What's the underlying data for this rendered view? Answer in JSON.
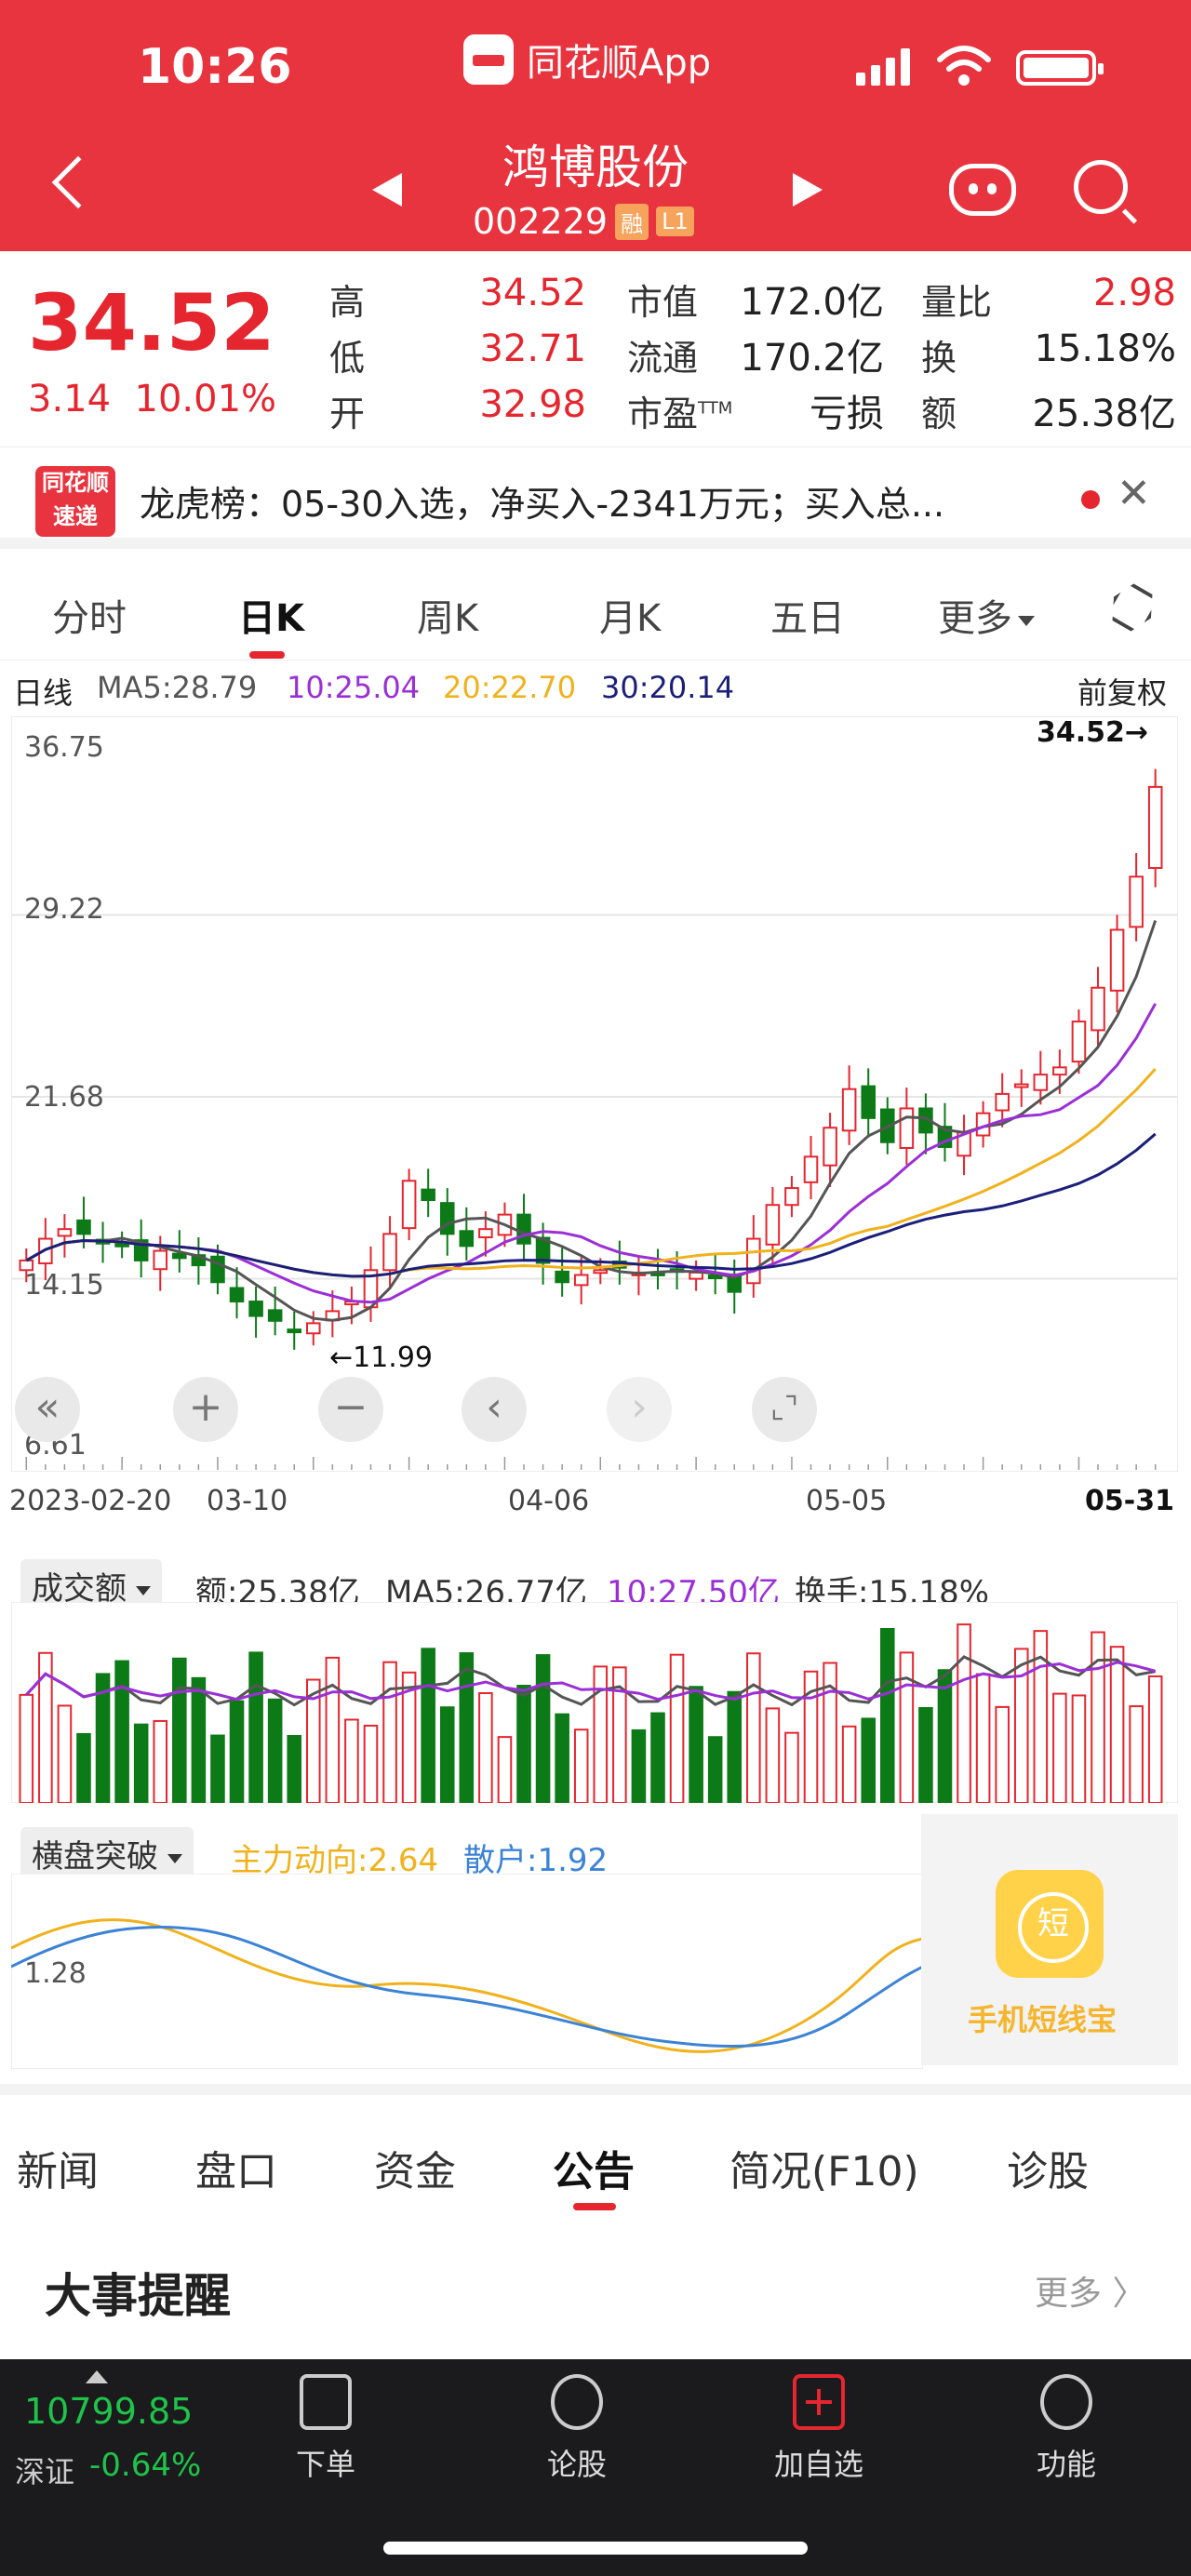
{
  "status": {
    "time": "10:26",
    "app_name": "同花顺App"
  },
  "stock": {
    "name": "鸿博股份",
    "code": "002229",
    "tag_margin": "融",
    "tag_level": "L1"
  },
  "quote": {
    "price": "34.52",
    "change": "3.14",
    "change_pct": "10.01%",
    "rows": [
      {
        "l1": "高",
        "v1": "34.52",
        "l2": "市值",
        "v2": "172.0亿",
        "l3": "量比",
        "v3": "2.98"
      },
      {
        "l1": "低",
        "v1": "32.71",
        "l2": "流通",
        "v2": "170.2亿",
        "l3": "换",
        "v3": "15.18%"
      },
      {
        "l1": "开",
        "v1": "32.98",
        "l2": "市盈",
        "l2sup": "TTM",
        "v2": "亏损",
        "l3": "额",
        "v3": "25.38亿"
      }
    ]
  },
  "news": {
    "logo_top": "同花顺",
    "logo_bottom": "速递",
    "text": "龙虎榜：05-30入选，净买入-2341万元；买入总..."
  },
  "chart_tabs": [
    "分时",
    "日K",
    "周K",
    "月K",
    "五日",
    "更多"
  ],
  "ma_row": {
    "label": "日线",
    "ma5": "MA5:28.79",
    "ma10": "10:25.04",
    "ma20": "20:22.70",
    "ma30": "30:20.14",
    "adj": "前复权"
  },
  "kline": {
    "y_labels": [
      "36.75",
      "29.22",
      "21.68",
      "14.15",
      "6.61"
    ],
    "high_label": "34.52→",
    "low_label": "←11.99",
    "x_labels": [
      "2023-02-20",
      "03-10",
      "04-06",
      "05-05",
      "05-31"
    ]
  },
  "controls": [
    "«",
    "+",
    "−",
    "‹",
    "›",
    "⌞⌝"
  ],
  "volume": {
    "dropdown": "成交额",
    "amt": "额:25.38亿",
    "ma5": "MA5:26.77亿",
    "ma10": "10:27.50亿",
    "turnover": "换手:15.18%"
  },
  "indicator": {
    "dropdown": "横盘突破",
    "main": "主力动向:2.64",
    "retail": "散户:1.92",
    "y_label": "1.28"
  },
  "promo": {
    "text": "手机短线宝"
  },
  "bottom_tabs": [
    "新闻",
    "盘口",
    "资金",
    "公告",
    "简况(F10)",
    "诊股"
  ],
  "events": {
    "title": "大事提醒",
    "more": "更多 〉"
  },
  "index": {
    "value": "10799.85",
    "name": "深证",
    "change": "-0.64%"
  },
  "bottom_nav": [
    "下单",
    "论股",
    "加自选",
    "功能"
  ],
  "colors": {
    "up": "#e5262f",
    "down": "#0d7a18",
    "ma5": "#555555",
    "ma10": "#9b2fd6",
    "ma20": "#f0b21c",
    "ma30": "#1b1f7a"
  },
  "chart_data": {
    "type": "candlestick",
    "ylim": [
      6.61,
      36.75
    ],
    "close_series_approx": [
      14.9,
      15.8,
      16.2,
      16.0,
      15.6,
      15.5,
      14.9,
      15.3,
      15.0,
      14.7,
      14.0,
      13.2,
      12.6,
      12.4,
      12.0,
      12.3,
      12.8,
      13.2,
      14.5,
      16.0,
      18.2,
      17.4,
      16.0,
      15.5,
      16.2,
      16.8,
      15.6,
      14.8,
      14.0,
      14.3,
      14.5,
      14.6,
      14.4,
      14.3,
      14.5,
      14.4,
      14.2,
      13.6,
      15.8,
      17.2,
      17.9,
      19.2,
      20.4,
      22.0,
      20.8,
      19.8,
      21.2,
      20.2,
      19.6,
      20.2,
      21.0,
      21.8,
      22.2,
      22.6,
      22.9,
      24.8,
      26.2,
      28.6,
      30.8,
      34.52
    ]
  }
}
